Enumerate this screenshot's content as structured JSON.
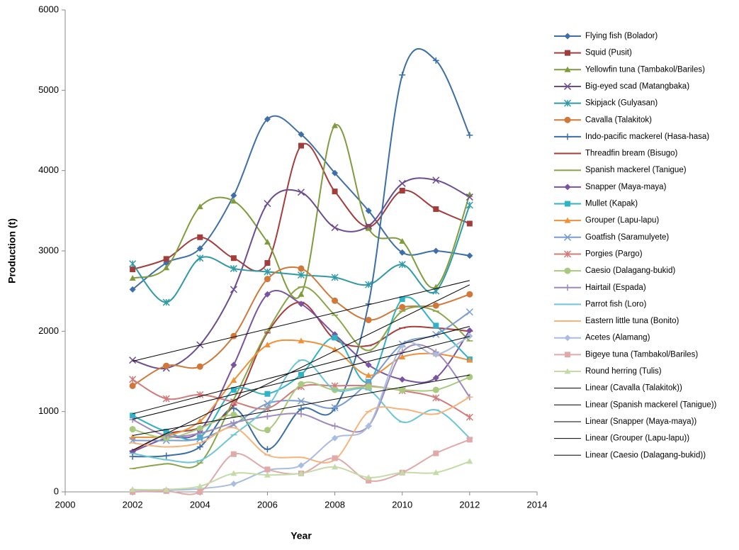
{
  "chart_data": {
    "type": "line",
    "smooth": true,
    "x_label": "Year",
    "y_label": "Production (t)",
    "xlim": [
      2000,
      2014
    ],
    "xticks": [
      2000,
      2002,
      2004,
      2006,
      2008,
      2010,
      2012,
      2014
    ],
    "ylim": [
      0,
      6000
    ],
    "yticks": [
      0,
      1000,
      2000,
      3000,
      4000,
      5000,
      6000
    ],
    "grid": false,
    "legend": "right",
    "x": [
      2002,
      2003,
      2004,
      2005,
      2006,
      2007,
      2008,
      2009,
      2010,
      2011,
      2012
    ],
    "series": [
      {
        "name": "Flying fish (Bolador)",
        "color": "#3f6fa8",
        "marker": "diamond",
        "values": [
          2520,
          2850,
          3030,
          3690,
          4640,
          4450,
          3970,
          3500,
          2980,
          3000,
          2940
        ]
      },
      {
        "name": "Squid (Pusit)",
        "color": "#a33d3b",
        "marker": "square",
        "values": [
          2770,
          2900,
          3170,
          2910,
          2850,
          4310,
          3740,
          3300,
          3750,
          3520,
          3340
        ]
      },
      {
        "name": "Yellowfin tuna (Tambakol/Bariles)",
        "color": "#7f9c3d",
        "marker": "triangle",
        "values": [
          2660,
          2790,
          3550,
          3620,
          3110,
          2460,
          4560,
          3280,
          3120,
          2550,
          3700
        ]
      },
      {
        "name": "Big-eyed scad (Matangbaka)",
        "color": "#6b4c8e",
        "marker": "x",
        "values": [
          1640,
          1540,
          1830,
          2520,
          3590,
          3730,
          3290,
          3310,
          3840,
          3880,
          3670
        ]
      },
      {
        "name": "Skipjack (Gulyasan)",
        "color": "#2f9aa6",
        "marker": "asterisk",
        "values": [
          2840,
          2360,
          2910,
          2780,
          2740,
          2700,
          2670,
          2580,
          2830,
          2500,
          3570
        ]
      },
      {
        "name": "Cavalla (Talakitok)",
        "color": "#d0783a",
        "marker": "circle",
        "values": [
          1320,
          1570,
          1560,
          1940,
          2650,
          2780,
          2380,
          2140,
          2300,
          2320,
          2460
        ],
        "trendline_name": "Linear (Cavalla (Talakitok))"
      },
      {
        "name": "Indo-pacific mackerel (Hasa-hasa)",
        "color": "#3a6ea5",
        "marker": "plus",
        "values": [
          440,
          450,
          560,
          1040,
          530,
          1030,
          1040,
          2340,
          5190,
          5370,
          4440
        ]
      },
      {
        "name": "Threadfin bream (Bisugo)",
        "color": "#a83c3a",
        "marker": "dash",
        "values": [
          510,
          720,
          800,
          1080,
          1980,
          2360,
          1900,
          1820,
          2040,
          2040,
          2000
        ]
      },
      {
        "name": "Spanish mackerel (Tanigue)",
        "color": "#89a548",
        "marker": "dash",
        "values": [
          290,
          350,
          360,
          1150,
          2000,
          2550,
          2200,
          1760,
          2250,
          2250,
          1880
        ],
        "trendline_name": "Linear (Spanish mackerel (Tanigue))"
      },
      {
        "name": "Snapper (Maya-maya)",
        "color": "#7953a0",
        "marker": "diamond",
        "values": [
          500,
          670,
          760,
          1580,
          2460,
          2340,
          1960,
          1580,
          1400,
          1420,
          2010
        ],
        "trendline_name": "Linear (Snapper (Maya-maya))"
      },
      {
        "name": "Mullet (Kapak)",
        "color": "#2fb3c7",
        "marker": "square",
        "values": [
          950,
          750,
          680,
          1270,
          1220,
          1460,
          1920,
          1370,
          2400,
          2070,
          1650
        ]
      },
      {
        "name": "Grouper (Lapu-lapu)",
        "color": "#f0913a",
        "marker": "triangle",
        "values": [
          680,
          700,
          880,
          1390,
          1830,
          1880,
          1770,
          1450,
          1680,
          1720,
          1640
        ],
        "trendline_name": "Linear (Grouper (Lapu-lapu))"
      },
      {
        "name": "Goatfish (Saramulyete)",
        "color": "#7a9cd1",
        "marker": "x",
        "values": [
          640,
          640,
          660,
          840,
          1100,
          1130,
          1050,
          1370,
          1840,
          1960,
          2240
        ]
      },
      {
        "name": "Porgies (Pargo)",
        "color": "#d17c7a",
        "marker": "asterisk",
        "values": [
          1400,
          1160,
          1210,
          1120,
          1040,
          1310,
          1320,
          1320,
          1260,
          1170,
          930
        ]
      },
      {
        "name": "Caesio (Dalagang-bukid)",
        "color": "#a9c97e",
        "marker": "circle",
        "values": [
          780,
          670,
          790,
          960,
          770,
          1340,
          1270,
          1310,
          1270,
          1270,
          1430
        ],
        "trendline_name": "Linear (Caesio (Dalagang-bukid))"
      },
      {
        "name": "Hairtail (Espada)",
        "color": "#9e89bb",
        "marker": "plus",
        "values": [
          900,
          700,
          730,
          860,
          940,
          970,
          820,
          820,
          1740,
          1740,
          1180
        ]
      },
      {
        "name": "Parrot fish (Loro)",
        "color": "#6dc6d6",
        "marker": "dash",
        "values": [
          480,
          400,
          390,
          710,
          1060,
          1640,
          1270,
          1270,
          870,
          1020,
          670
        ]
      },
      {
        "name": "Eastern little tuna (Bonito)",
        "color": "#f6b47c",
        "marker": "dash",
        "values": [
          610,
          560,
          610,
          800,
          460,
          430,
          400,
          1000,
          1030,
          970,
          1180
        ]
      },
      {
        "name": "Acetes (Alamang)",
        "color": "#a9bde0",
        "marker": "diamond",
        "values": [
          20,
          20,
          40,
          100,
          270,
          330,
          670,
          820,
          1820,
          1710,
          1940
        ]
      },
      {
        "name": "Bigeye tuna (Tambakol/Bariles)",
        "color": "#dfaaa9",
        "marker": "square",
        "values": [
          0,
          10,
          0,
          470,
          280,
          230,
          420,
          140,
          240,
          480,
          650
        ]
      },
      {
        "name": "Round herring (Tulis)",
        "color": "#c5dba7",
        "marker": "triangle",
        "values": [
          30,
          30,
          70,
          230,
          210,
          230,
          310,
          180,
          240,
          240,
          380
        ]
      }
    ]
  }
}
